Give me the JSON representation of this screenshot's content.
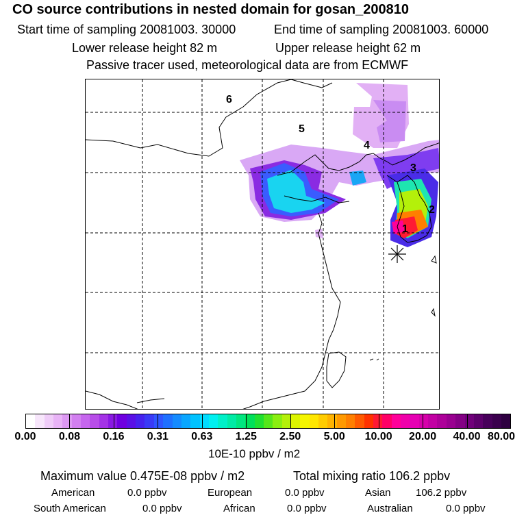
{
  "header": {
    "title": "CO  source contributions in nested domain for gosan_200810",
    "start_label": "Start time of sampling 20081003. 30000",
    "end_label": "End time of sampling 20081003. 60000",
    "lower_release": "Lower release height   82 m",
    "upper_release": "Upper release height   62 m",
    "note": "Passive tracer used, meteorological data are from ECMWF"
  },
  "map": {
    "region_labels": [
      "1",
      "2",
      "3",
      "4",
      "5",
      "6"
    ],
    "receptor_marker": "asterisk-icon"
  },
  "colorbar": {
    "tick_labels": [
      "0.00",
      "0.08",
      "0.16",
      "0.31",
      "0.63",
      "1.25",
      "2.50",
      "5.00",
      "10.00",
      "20.00",
      "40.00",
      "80.00"
    ],
    "unit": "10E-10 ppbv / m2",
    "colors": [
      "#ffffff",
      "#f7e6fb",
      "#efccf8",
      "#e8b3f6",
      "#dd99f3",
      "#d27ff0",
      "#c666ee",
      "#b84de9",
      "#a433e6",
      "#8a1ae3",
      "#6f00e0",
      "#5a10e6",
      "#4622ee",
      "#3a3af6",
      "#2f55ff",
      "#1f70ff",
      "#158bff",
      "#0aa6ff",
      "#00c2ff",
      "#00dcff",
      "#00f0f0",
      "#00f0c8",
      "#00eba5",
      "#00e67f",
      "#00e05a",
      "#20e030",
      "#55e61a",
      "#8aee10",
      "#b4f00a",
      "#dcf500",
      "#f5f500",
      "#ffe600",
      "#ffcc00",
      "#ffb300",
      "#ff9900",
      "#ff7f00",
      "#ff5a00",
      "#ff3300",
      "#ff1a33",
      "#ff0066",
      "#ff0099",
      "#f000aa",
      "#e600b3",
      "#d600aa",
      "#c200a3",
      "#ad0099",
      "#990090",
      "#840085",
      "#70007a",
      "#5c006b",
      "#47005a",
      "#3a004d",
      "#2e0040"
    ]
  },
  "summary": {
    "max_value": "Maximum value  0.475E-08 ppbv / m2",
    "total_mixing": "Total mixing ratio     106.2 ppbv",
    "sources": [
      {
        "name": "American",
        "value": "0.0 ppbv"
      },
      {
        "name": "European",
        "value": "0.0 ppbv"
      },
      {
        "name": "Asian",
        "value": "106.2 ppbv"
      },
      {
        "name": "South American",
        "value": "0.0 ppbv"
      },
      {
        "name": "African",
        "value": "0.0 ppbv"
      },
      {
        "name": "Australian",
        "value": "0.0 ppbv"
      }
    ]
  }
}
